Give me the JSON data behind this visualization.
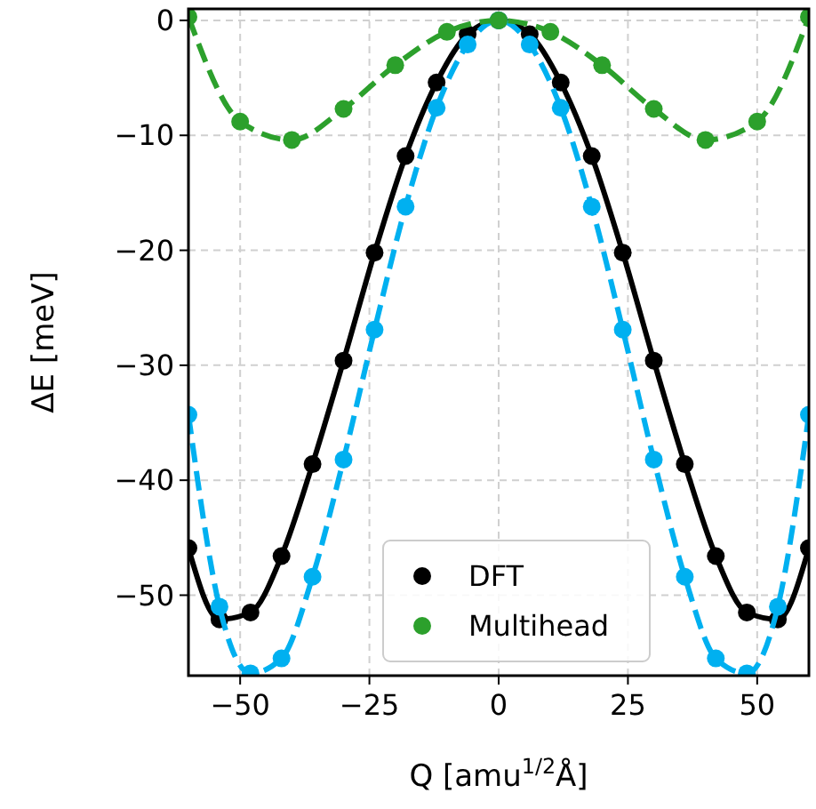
{
  "chart_data": {
    "type": "line",
    "xlabel": "Q [amu$^{1/2}$Å]",
    "ylabel": "ΔE [meV]",
    "xlim": [
      -60,
      60
    ],
    "ylim": [
      -57,
      1
    ],
    "xticks": [
      {
        "value": -50,
        "label": "−50"
      },
      {
        "value": -25,
        "label": "−25"
      },
      0,
      25,
      50
    ],
    "yticks": [
      {
        "value": -50,
        "label": "−50"
      },
      {
        "value": -40,
        "label": "−40"
      },
      {
        "value": -30,
        "label": "−30"
      },
      {
        "value": -20,
        "label": "−20"
      },
      {
        "value": -10,
        "label": "−10"
      },
      0
    ],
    "grid": true,
    "legend": "bottom",
    "marker": "circle",
    "series": [
      {
        "name": "DFT",
        "color": "#000000",
        "line_style": "solid",
        "x": [
          -60,
          -54,
          -48,
          -42,
          -36,
          -30,
          -24,
          -18,
          -12,
          -6,
          0,
          6,
          12,
          18,
          24,
          30,
          36,
          42,
          48,
          54,
          60
        ],
        "values": [
          -45.9,
          -52.1,
          -51.5,
          -46.6,
          -38.6,
          -29.6,
          -20.2,
          -11.8,
          -5.4,
          -1.2,
          0,
          -1.2,
          -5.4,
          -11.8,
          -20.2,
          -29.6,
          -38.6,
          -46.6,
          -51.5,
          -52.1,
          -45.9
        ]
      },
      {
        "color": "#00b0f0",
        "line_style": "dashed",
        "x": [
          -60,
          -54,
          -48,
          -42,
          -36,
          -30,
          -24,
          -18,
          -12,
          -6,
          0,
          6,
          12,
          18,
          24,
          30,
          36,
          42,
          48,
          54,
          60
        ],
        "values": [
          -34.3,
          -51,
          -56.8,
          -55.5,
          -48.4,
          -38.2,
          -26.9,
          -16.2,
          -7.6,
          -2.1,
          0,
          -2.1,
          -7.6,
          -16.2,
          -26.9,
          -38.2,
          -48.4,
          -55.5,
          -56.8,
          -51,
          -34.3
        ]
      },
      {
        "name": "Multihead",
        "color": "#2ca02c",
        "line_style": "dashed",
        "x": [
          -60,
          -50,
          -40,
          -30,
          -20,
          -10,
          0,
          10,
          20,
          30,
          40,
          50,
          60
        ],
        "values": [
          0.3,
          -8.8,
          -10.4,
          -7.7,
          -3.9,
          -1,
          0,
          -1,
          -3.9,
          -7.7,
          -10.4,
          -8.8,
          0.3
        ]
      }
    ]
  }
}
